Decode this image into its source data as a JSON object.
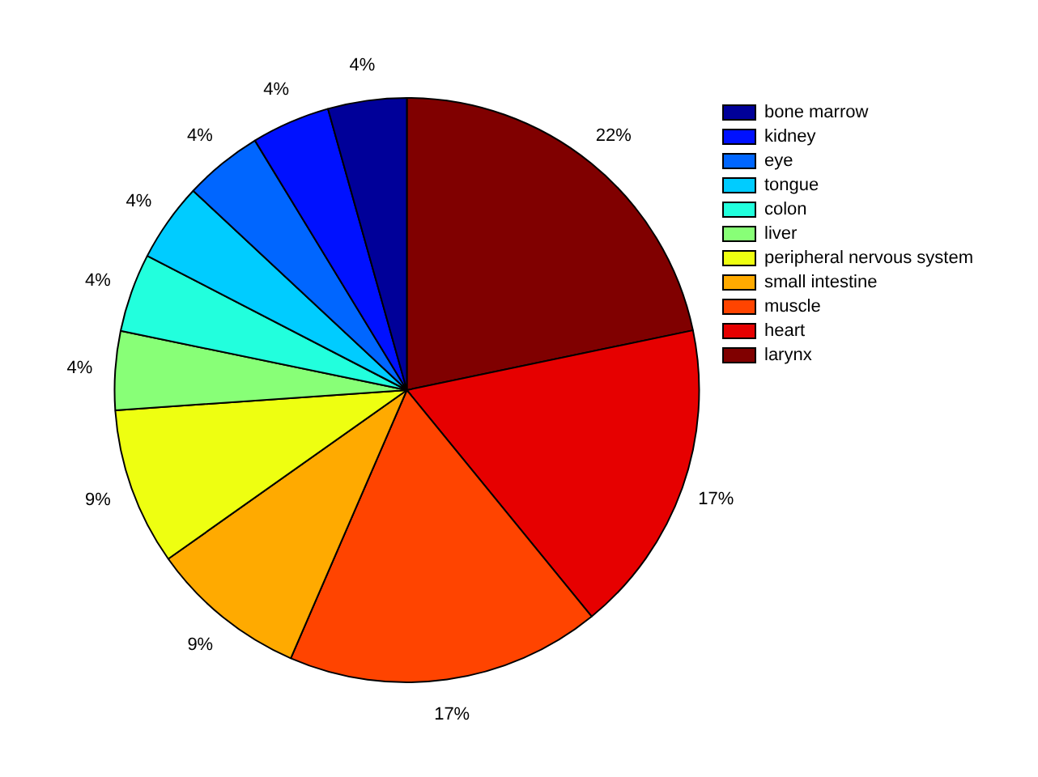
{
  "chart_data": {
    "type": "pie",
    "categories": [
      "larynx",
      "heart",
      "muscle",
      "small intestine",
      "peripheral nervous system",
      "liver",
      "colon",
      "tongue",
      "eye",
      "kidney",
      "bone marrow"
    ],
    "values": [
      21.72,
      17.39,
      17.39,
      8.7,
      8.7,
      4.35,
      4.35,
      4.35,
      4.35,
      4.35,
      4.35
    ],
    "value_labels": [
      "22%",
      "17%",
      "17%",
      "9%",
      "9%",
      "4%",
      "4%",
      "4%",
      "4%",
      "4%",
      "4%"
    ],
    "colors": [
      "#800000",
      "#e60000",
      "#ff4400",
      "#ffaa00",
      "#eeff11",
      "#88ff77",
      "#22ffdd",
      "#00ccff",
      "#0066ff",
      "#0011ff",
      "#000099"
    ],
    "legend": "top right"
  }
}
